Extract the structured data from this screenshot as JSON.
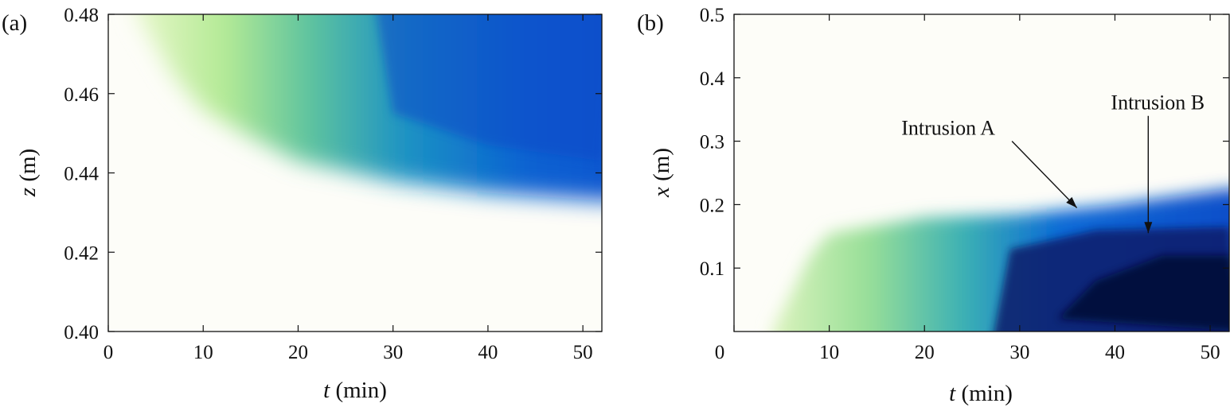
{
  "colors": {
    "cmap": [
      "#fdfdf8",
      "#c2eea0",
      "#6fcc9a",
      "#1b8fc2",
      "#0a50d2",
      "#0a2a7a",
      "#050a3c"
    ]
  },
  "chart_data": [
    {
      "panel": "(a)",
      "type": "heatmap",
      "xlabel_sym": "t",
      "xlabel_unit": " (min)",
      "ylabel_sym": "z",
      "ylabel_unit": " (m)",
      "xlim": [
        0,
        52
      ],
      "ylim": [
        0.4,
        0.48
      ],
      "xticks": [
        0,
        10,
        20,
        30,
        40,
        50
      ],
      "xtick_labels": [
        "0",
        "10",
        "20",
        "30",
        "40",
        "50"
      ],
      "yticks": [
        0.4,
        0.42,
        0.44,
        0.46,
        0.48
      ],
      "ytick_labels": [
        "0.40",
        "0.42",
        "0.44",
        "0.46",
        "0.48"
      ],
      "front_boundary": [
        {
          "t": 3,
          "z": 0.48
        },
        {
          "t": 5,
          "z": 0.472
        },
        {
          "t": 7,
          "z": 0.464
        },
        {
          "t": 10,
          "z": 0.456
        },
        {
          "t": 15,
          "z": 0.449
        },
        {
          "t": 20,
          "z": 0.443
        },
        {
          "t": 30,
          "z": 0.438
        },
        {
          "t": 40,
          "z": 0.435
        },
        {
          "t": 52,
          "z": 0.433
        }
      ]
    },
    {
      "panel": "(b)",
      "type": "heatmap",
      "xlabel_sym": "t",
      "xlabel_unit": " (min)",
      "ylabel_sym": "x",
      "ylabel_unit": " (m)",
      "xlim": [
        0,
        52
      ],
      "ylim": [
        0,
        0.5
      ],
      "xticks": [
        0,
        10,
        20,
        30,
        40,
        50
      ],
      "xtick_labels": [
        "0",
        "10",
        "20",
        "30",
        "40",
        "50"
      ],
      "yticks": [
        0.1,
        0.2,
        0.3,
        0.4,
        0.5
      ],
      "ytick_labels": [
        "0.1",
        "0.2",
        "0.3",
        "0.4",
        "0.5"
      ],
      "front_boundary": [
        {
          "t": 4,
          "x": 0.0
        },
        {
          "t": 8,
          "x": 0.12
        },
        {
          "t": 10,
          "x": 0.155
        },
        {
          "t": 20,
          "x": 0.18
        },
        {
          "t": 30,
          "x": 0.185
        },
        {
          "t": 40,
          "x": 0.2
        },
        {
          "t": 52,
          "x": 0.225
        }
      ],
      "annotations": [
        {
          "text": "Intrusion A",
          "text_t": 22.5,
          "text_x": 0.31,
          "arrow_t": 36,
          "arrow_x": 0.195
        },
        {
          "text": "Intrusion B",
          "text_t": 44.5,
          "text_x": 0.35,
          "arrow_t": 43.5,
          "arrow_x": 0.155
        }
      ]
    }
  ]
}
